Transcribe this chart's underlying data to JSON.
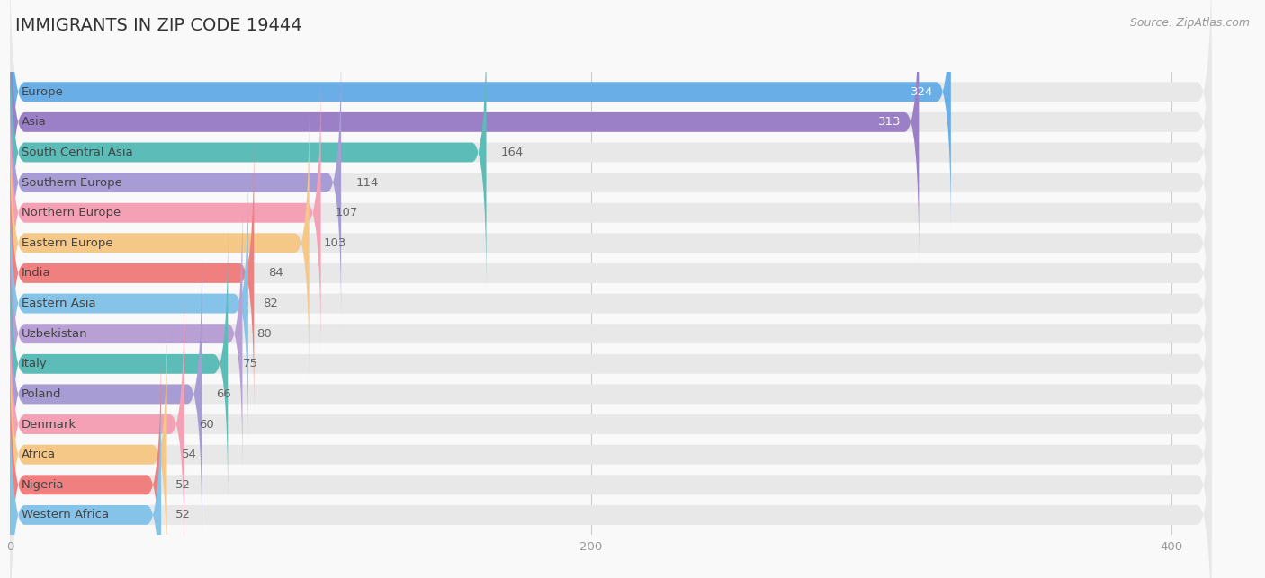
{
  "title": "IMMIGRANTS IN ZIP CODE 19444",
  "source": "Source: ZipAtlas.com",
  "categories": [
    "Europe",
    "Asia",
    "South Central Asia",
    "Southern Europe",
    "Northern Europe",
    "Eastern Europe",
    "India",
    "Eastern Asia",
    "Uzbekistan",
    "Italy",
    "Poland",
    "Denmark",
    "Africa",
    "Nigeria",
    "Western Africa"
  ],
  "values": [
    324,
    313,
    164,
    114,
    107,
    103,
    84,
    82,
    80,
    75,
    66,
    60,
    54,
    52,
    52
  ],
  "colors": [
    "#6aaee8",
    "#9b7fc7",
    "#5bbcb8",
    "#a89cd4",
    "#f4a0b5",
    "#f5c888",
    "#f08080",
    "#85c4e8",
    "#b8a0d4",
    "#5bbcb8",
    "#a89cd4",
    "#f4a0b5",
    "#f5c888",
    "#f08080",
    "#85c4e8"
  ],
  "xlim": [
    0,
    420
  ],
  "background_color": "#f9f9f9",
  "bar_background": "#e8e8e8",
  "title_fontsize": 14,
  "label_fontsize": 9.5,
  "value_fontsize": 9.5
}
